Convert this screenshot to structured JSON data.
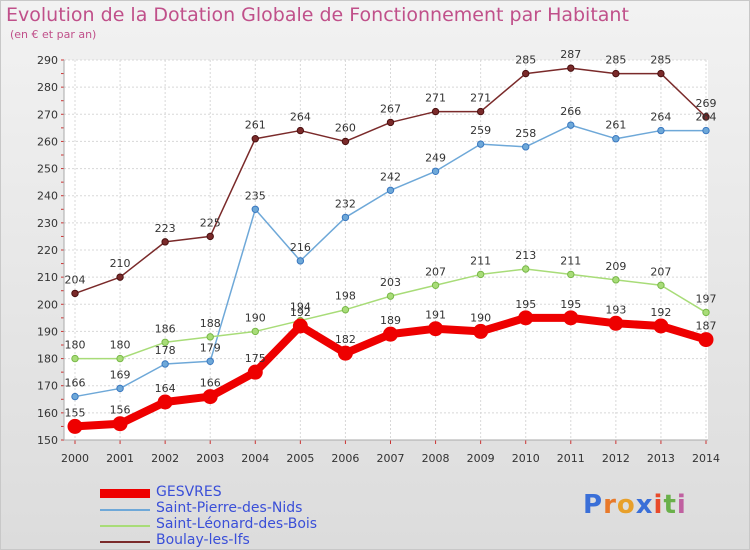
{
  "title": "Evolution de la Dotation Globale de Fonctionnement par Habitant",
  "subtitle": "(en € et par an)",
  "logo": {
    "text": "Proxiti",
    "letters": [
      "P",
      "r",
      "o",
      "x",
      "i",
      "t",
      "i"
    ],
    "colors": [
      "#3a6fd8",
      "#e8792a",
      "#e8a02a",
      "#3a6fd8",
      "#e84a2a",
      "#6ab04a",
      "#c060a0"
    ]
  },
  "chart_data": {
    "type": "line",
    "title": "Evolution de la Dotation Globale de Fonctionnement par Habitant",
    "subtitle": "(en € et par an)",
    "xlabel": "",
    "ylabel": "",
    "x": [
      "2000",
      "2001",
      "2002",
      "2003",
      "2004",
      "2005",
      "2006",
      "2007",
      "2008",
      "2009",
      "2010",
      "2011",
      "2012",
      "2013",
      "2014"
    ],
    "ylim": [
      150,
      290
    ],
    "yticks": [
      150,
      160,
      170,
      180,
      190,
      200,
      210,
      220,
      230,
      240,
      250,
      260,
      270,
      280,
      290
    ],
    "grid": true,
    "legend": "bottom-left",
    "series": [
      {
        "name": "GESVRES",
        "color": "#ee0000",
        "width": 8,
        "values": [
          155,
          156,
          164,
          166,
          175,
          192,
          182,
          189,
          191,
          190,
          195,
          195,
          193,
          192,
          187
        ]
      },
      {
        "name": "Saint-Pierre-des-Nids",
        "color": "#6ea8d8",
        "width": 1.5,
        "values": [
          166,
          169,
          178,
          179,
          235,
          216,
          232,
          242,
          249,
          259,
          258,
          266,
          261,
          264,
          264
        ]
      },
      {
        "name": "Saint-Léonard-des-Bois",
        "color": "#a8dc78",
        "width": 1.5,
        "values": [
          180,
          180,
          186,
          188,
          190,
          194,
          198,
          203,
          207,
          211,
          213,
          211,
          209,
          207,
          197
        ]
      },
      {
        "name": "Boulay-les-Ifs",
        "color": "#7a2a2a",
        "width": 1.5,
        "values": [
          204,
          210,
          223,
          225,
          261,
          264,
          260,
          267,
          271,
          271,
          285,
          287,
          285,
          285,
          269
        ]
      }
    ]
  }
}
